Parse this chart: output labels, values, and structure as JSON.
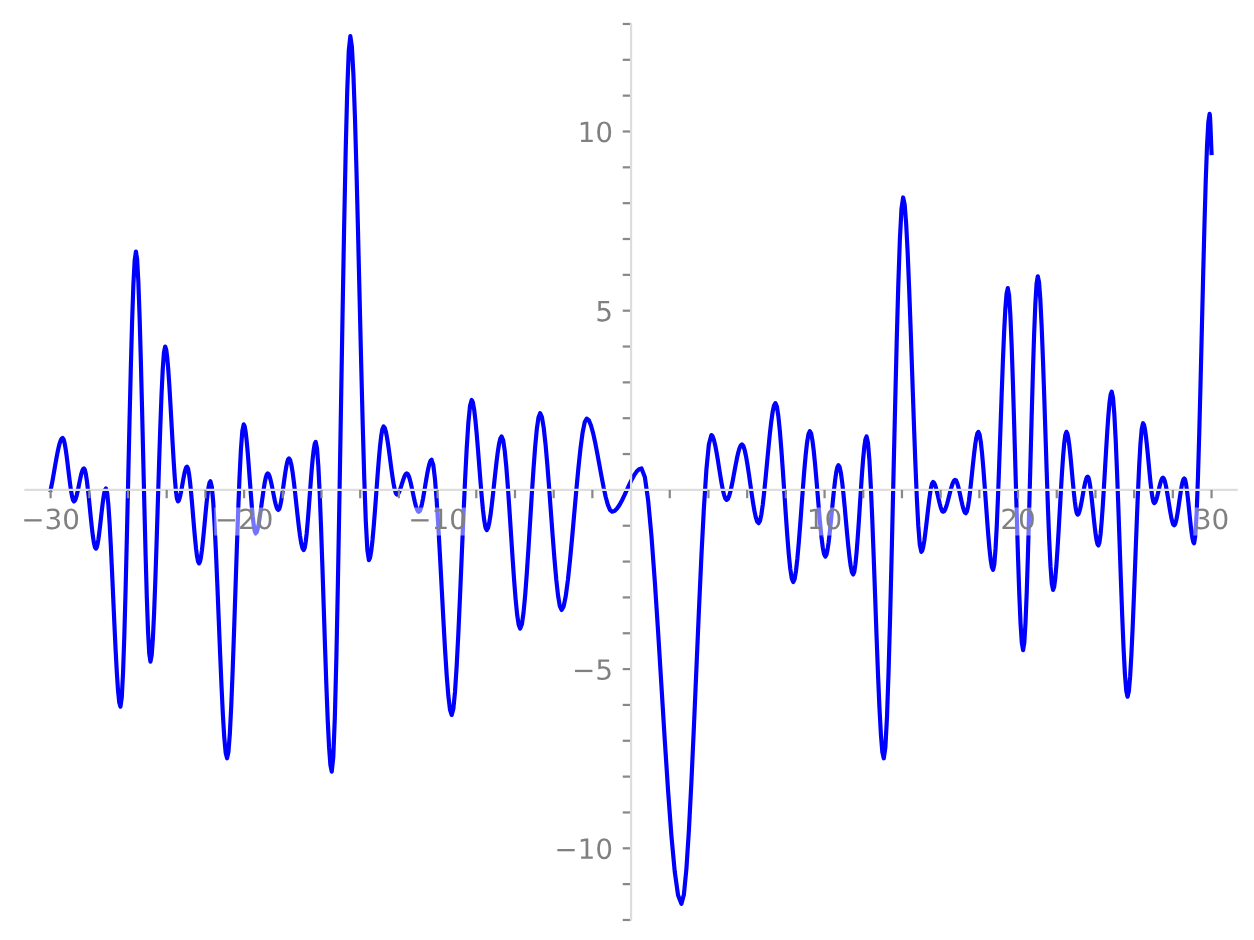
{
  "chart_data": {
    "type": "line",
    "x": [
      -30,
      -29.38,
      -28.79,
      -28.28,
      -27.66,
      -27.14,
      -26.39,
      -25.59,
      -24.84,
      -24.08,
      -23.42,
      -22.95,
      -22.33,
      -21.74,
      -20.88,
      -20.02,
      -19.4,
      -18.78,
      -18.23,
      -17.68,
      -16.92,
      -16.3,
      -15.47,
      -14.51,
      -13.55,
      -12.79,
      -12.1,
      -11.59,
      -10.97,
      -10.31,
      -9.27,
      -8.24,
      -7.46,
      -6.69,
      -5.73,
      -4.7,
      -3.59,
      -2.29,
      -0.98,
      0.54,
      2.6,
      4.15,
      4.94,
      5.73,
      6.59,
      7.46,
      8.38,
      9.24,
      10.04,
      10.72,
      11.48,
      12.17,
      13.06,
      14.06,
      15.0,
      15.61,
      16.13,
      16.75,
      17.3,
      17.95,
      18.71,
      19.47,
      20.26,
      21.02,
      21.81,
      22.5,
      23.08,
      23.6,
      24.15,
      24.84,
      25.66,
      26.46,
      27.04,
      27.49,
      28.07,
      28.59,
      29.1,
      29.9,
      30
    ],
    "series": [
      {
        "color": "#0000ff",
        "values": [
          0,
          1.45,
          -0.32,
          0.6,
          -1.64,
          0.04,
          -6.05,
          6.65,
          -4.79,
          4.0,
          -0.32,
          0.65,
          -2.05,
          0.24,
          -7.49,
          1.83,
          -1.21,
          0.46,
          -0.56,
          0.88,
          -1.68,
          1.34,
          -7.86,
          12.66,
          -1.96,
          1.77,
          -0.13,
          0.46,
          -0.61,
          0.84,
          -6.28,
          2.51,
          -1.12,
          1.49,
          -3.87,
          2.14,
          -3.35,
          1.99,
          -0.61,
          0.6,
          -11.55,
          1.53,
          -0.28,
          1.27,
          -0.93,
          2.42,
          -2.57,
          1.64,
          -1.86,
          0.69,
          -2.36,
          1.49,
          -7.49,
          8.16,
          -1.73,
          0.22,
          -0.61,
          0.28,
          -0.65,
          1.62,
          -2.23,
          5.63,
          -4.47,
          5.96,
          -2.79,
          1.62,
          -0.69,
          0.37,
          -1.55,
          2.74,
          -5.77,
          1.86,
          -0.37,
          0.34,
          -0.99,
          0.32,
          -1.49,
          10.49,
          9.4
        ]
      }
    ],
    "xlim": [
      -31.3,
      31.3
    ],
    "ylim": [
      -12,
      13
    ],
    "xticks": [
      {
        "value": -30,
        "label": "−30"
      },
      {
        "value": -28,
        "label": null
      },
      {
        "value": -26,
        "label": null
      },
      {
        "value": -24,
        "label": null
      },
      {
        "value": -22,
        "label": null
      },
      {
        "value": -20,
        "label": "−20"
      },
      {
        "value": -18,
        "label": null
      },
      {
        "value": -16,
        "label": null
      },
      {
        "value": -14,
        "label": null
      },
      {
        "value": -12,
        "label": null
      },
      {
        "value": -10,
        "label": "−10"
      },
      {
        "value": -8,
        "label": null
      },
      {
        "value": -6,
        "label": null
      },
      {
        "value": -4,
        "label": null
      },
      {
        "value": -2,
        "label": null
      },
      {
        "value": 2,
        "label": null
      },
      {
        "value": 4,
        "label": null
      },
      {
        "value": 6,
        "label": null
      },
      {
        "value": 8,
        "label": null
      },
      10,
      {
        "value": 12,
        "label": null
      },
      {
        "value": 14,
        "label": null
      },
      {
        "value": 16,
        "label": null
      },
      {
        "value": 18,
        "label": null
      },
      20,
      {
        "value": 22,
        "label": null
      },
      {
        "value": 24,
        "label": null
      },
      {
        "value": 26,
        "label": null
      },
      {
        "value": 28,
        "label": null
      },
      30
    ],
    "yticks": [
      {
        "value": -12,
        "label": null
      },
      {
        "value": -11,
        "label": null
      },
      {
        "value": -10,
        "label": "−10"
      },
      {
        "value": -9,
        "label": null
      },
      {
        "value": -8,
        "label": null
      },
      {
        "value": -7,
        "label": null
      },
      {
        "value": -6,
        "label": null
      },
      {
        "value": -5,
        "label": "−5"
      },
      {
        "value": -4,
        "label": null
      },
      {
        "value": -3,
        "label": null
      },
      {
        "value": -2,
        "label": null
      },
      {
        "value": -1,
        "label": null
      },
      {
        "value": 1,
        "label": null
      },
      {
        "value": 2,
        "label": null
      },
      {
        "value": 3,
        "label": null
      },
      {
        "value": 4,
        "label": null
      },
      5,
      {
        "value": 6,
        "label": null
      },
      {
        "value": 7,
        "label": null
      },
      {
        "value": 8,
        "label": null
      },
      {
        "value": 9,
        "label": null
      },
      10,
      {
        "value": 11,
        "label": null
      },
      {
        "value": 12,
        "label": null
      },
      {
        "value": 13,
        "label": null
      }
    ],
    "grid": false,
    "legend": false,
    "marker": "none",
    "line_style": "solid"
  }
}
